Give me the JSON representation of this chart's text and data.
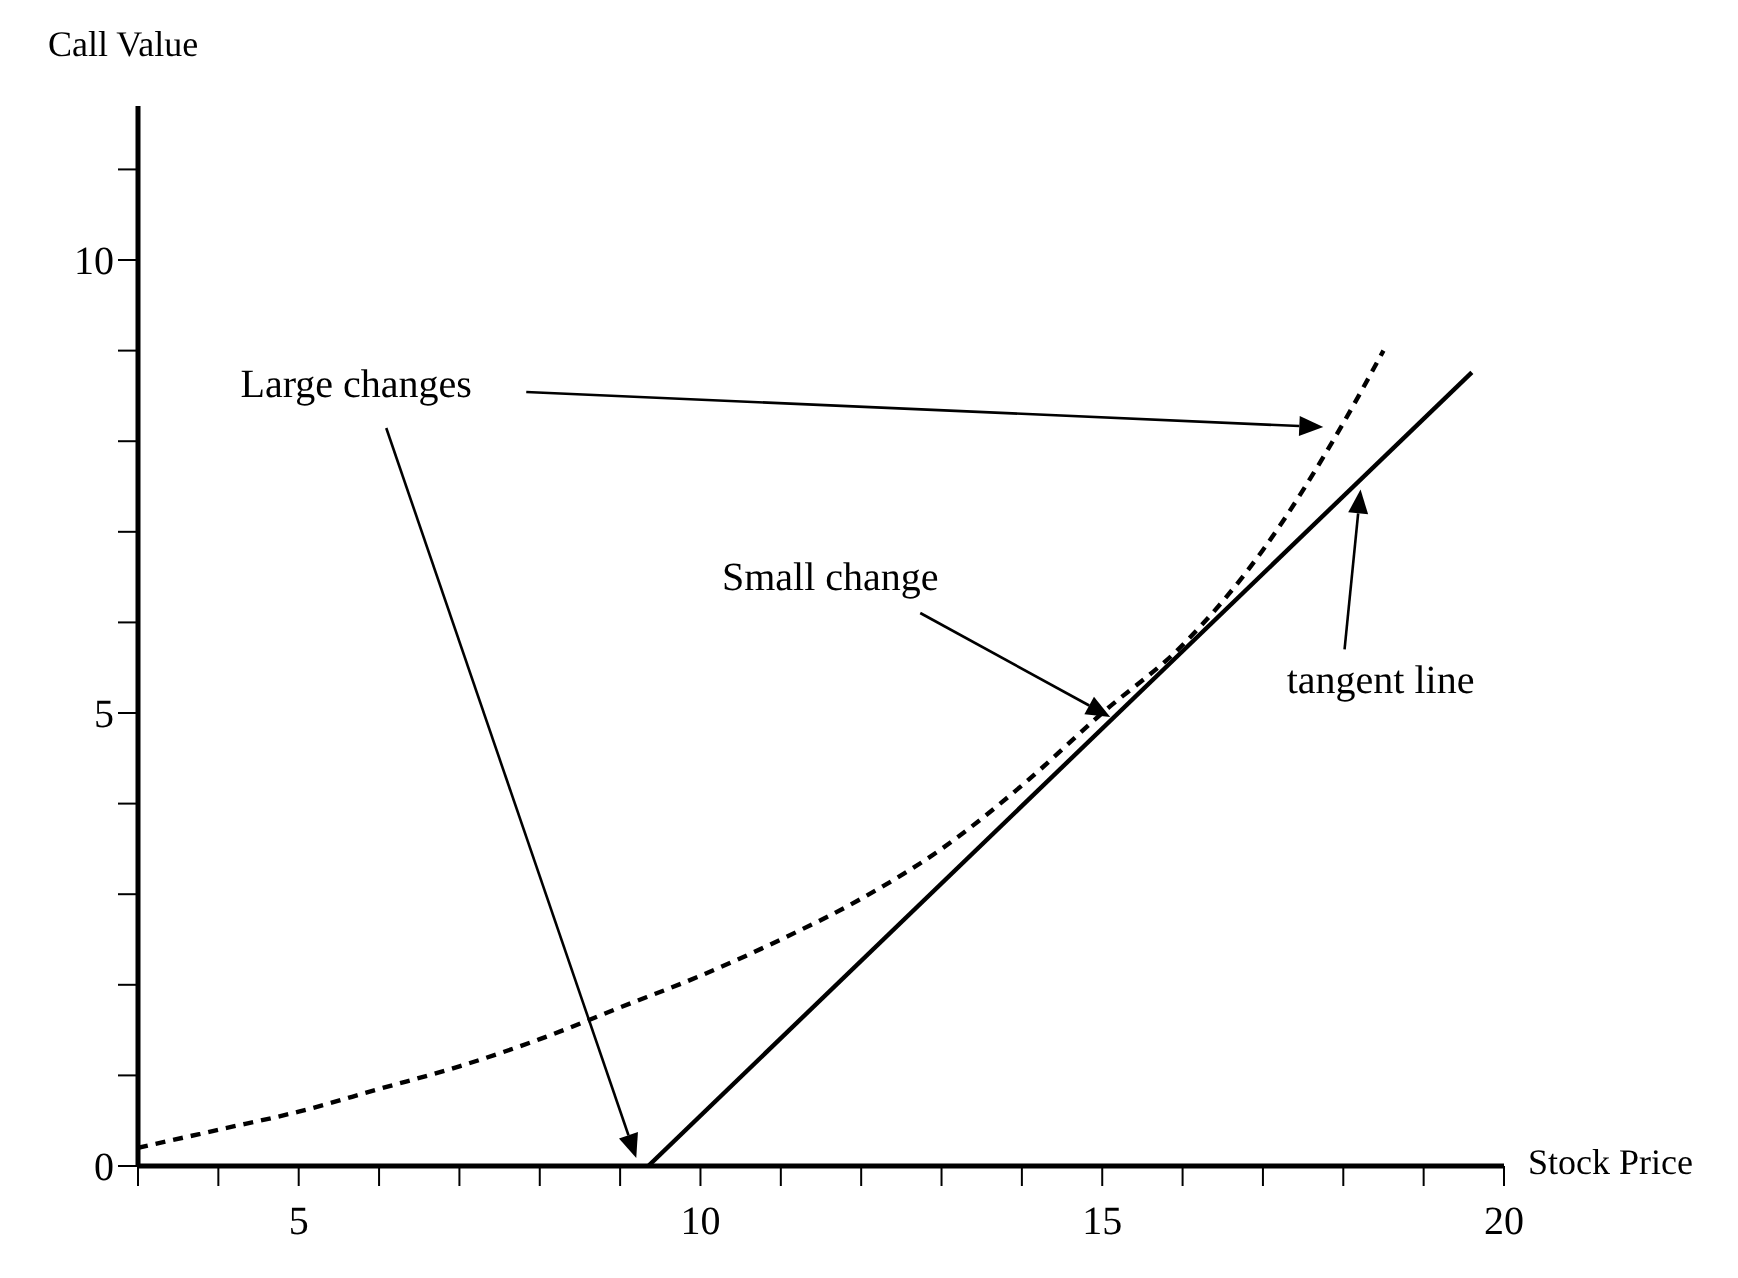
{
  "chart_data": {
    "type": "line",
    "xlabel": "Stock Price",
    "ylabel": "Call Value",
    "xlim": [
      3,
      20
    ],
    "ylim": [
      0,
      11.7
    ],
    "xticks": [
      {
        "value": 3,
        "label": null
      },
      {
        "value": 4,
        "label": null
      },
      5,
      {
        "value": 6,
        "label": null
      },
      {
        "value": 7,
        "label": null
      },
      {
        "value": 8,
        "label": null
      },
      {
        "value": 9,
        "label": null
      },
      10,
      {
        "value": 11,
        "label": null
      },
      {
        "value": 12,
        "label": null
      },
      {
        "value": 13,
        "label": null
      },
      {
        "value": 14,
        "label": null
      },
      15,
      {
        "value": 16,
        "label": null
      },
      {
        "value": 17,
        "label": null
      },
      {
        "value": 18,
        "label": null
      },
      {
        "value": 19,
        "label": null
      },
      20
    ],
    "yticks": [
      0,
      {
        "value": 1,
        "label": null
      },
      {
        "value": 2,
        "label": null
      },
      {
        "value": 3,
        "label": null
      },
      {
        "value": 4,
        "label": null
      },
      5,
      {
        "value": 6,
        "label": null
      },
      {
        "value": 7,
        "label": null
      },
      {
        "value": 8,
        "label": null
      },
      {
        "value": 9,
        "label": null
      },
      10,
      {
        "value": 11,
        "label": null
      }
    ],
    "marker": "none",
    "series": [
      {
        "color": "#000000",
        "line_style": "dashed",
        "x": [
          3,
          4,
          5,
          6,
          7,
          8,
          9,
          10,
          11,
          12,
          13,
          14,
          15,
          16,
          17,
          18,
          18.5
        ],
        "values": [
          0.2,
          0.4,
          0.6,
          0.85,
          1.1,
          1.4,
          1.75,
          2.1,
          2.5,
          2.95,
          3.5,
          4.2,
          5.0,
          5.75,
          6.8,
          8.2,
          9.0
        ]
      },
      {
        "color": "#000000",
        "line_style": "solid",
        "x": [
          9.35,
          19.6
        ],
        "values": [
          0,
          8.76
        ]
      }
    ],
    "annotations": [
      "Large changes",
      "Small change",
      "tangent line"
    ]
  }
}
